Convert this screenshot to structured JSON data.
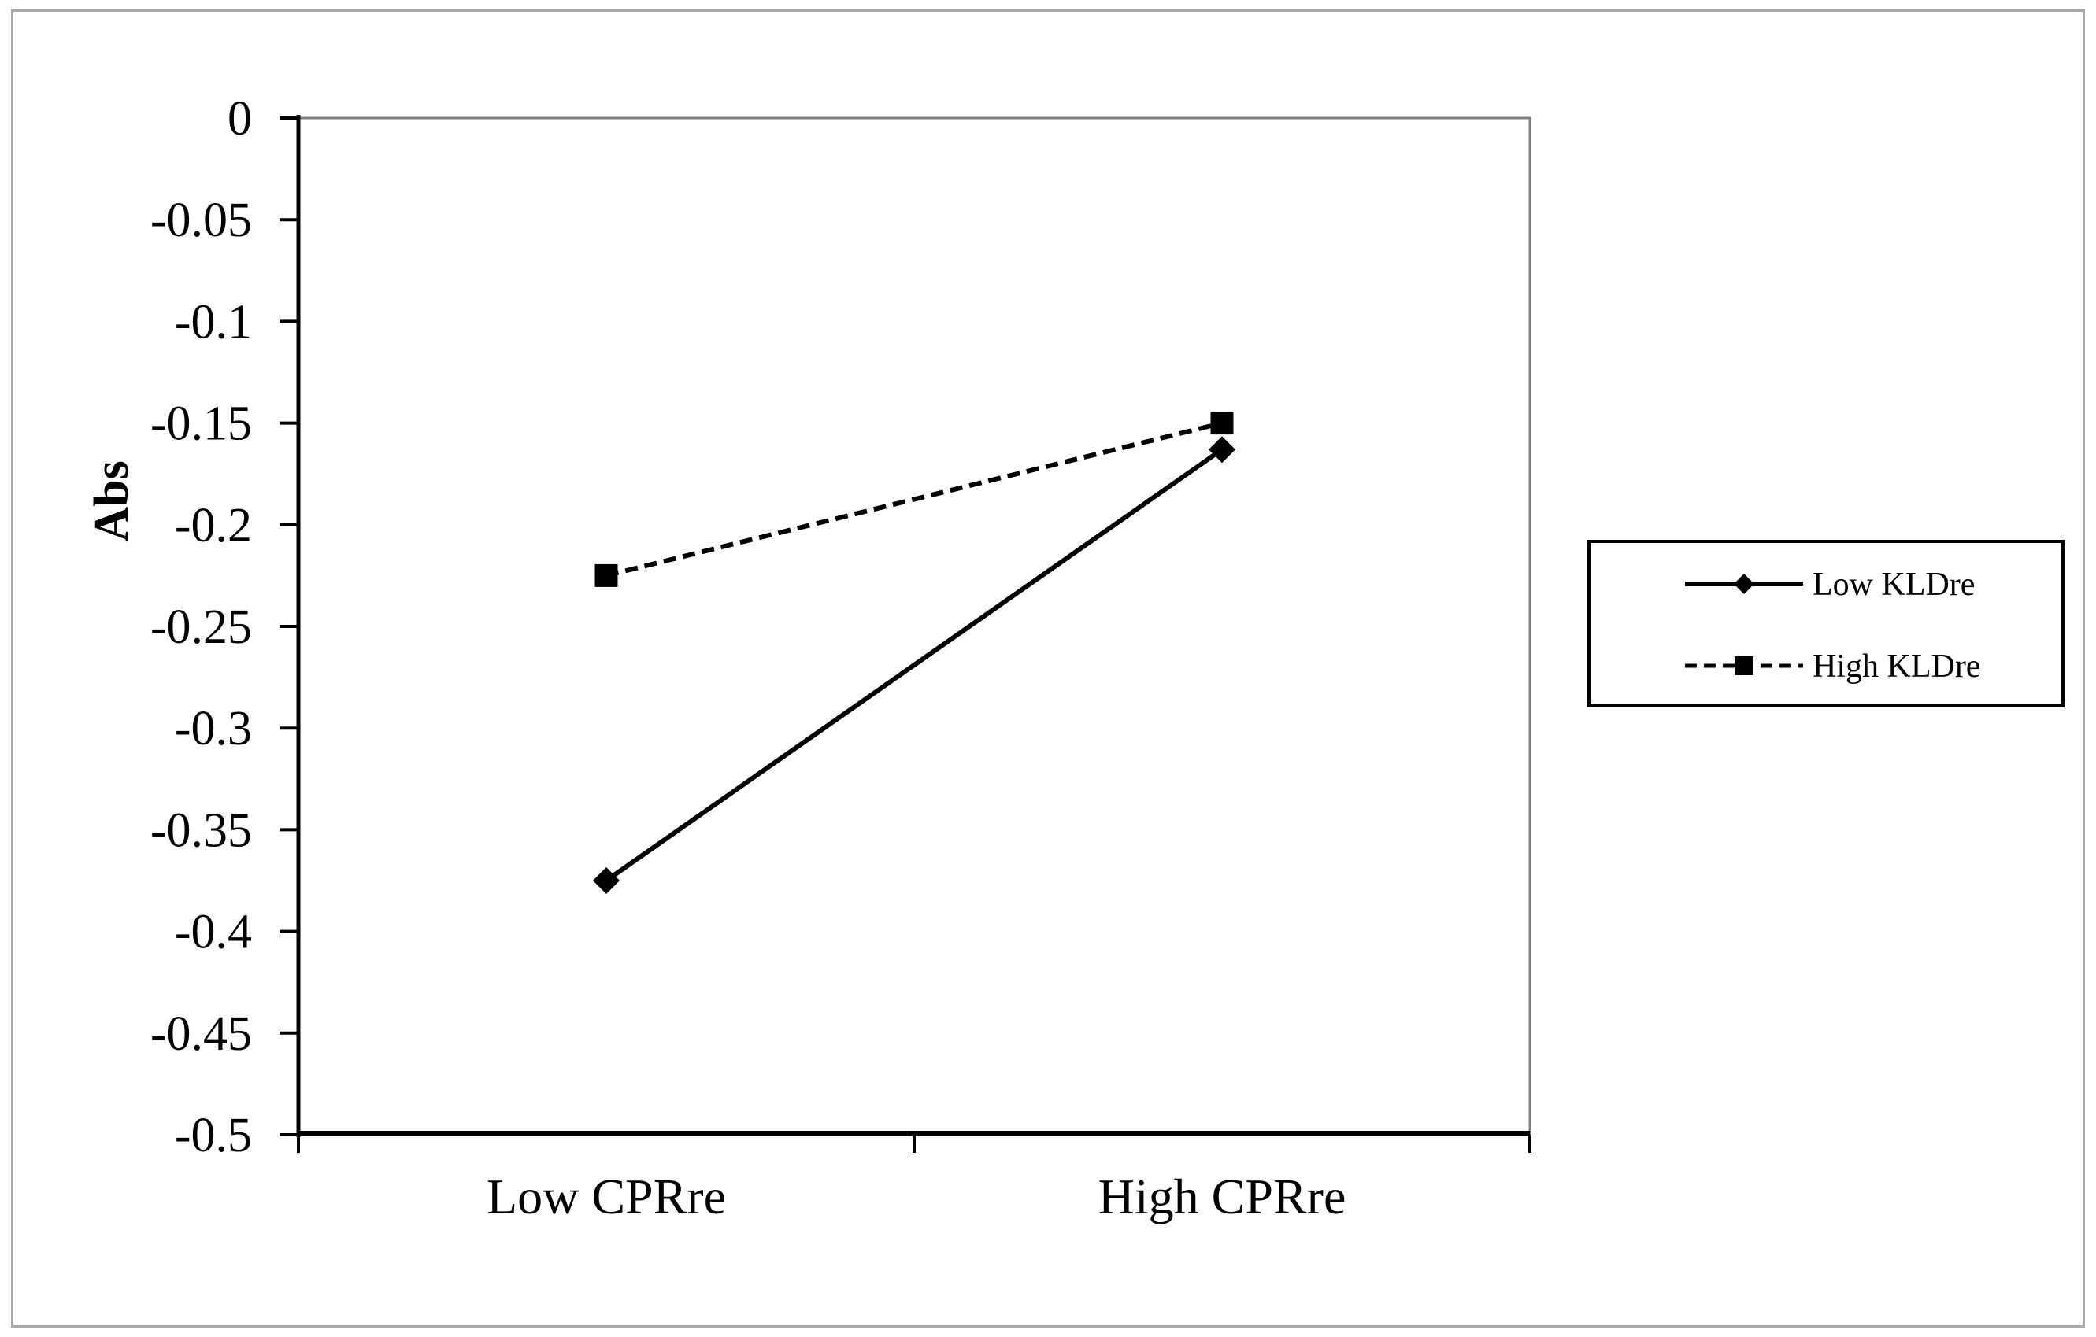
{
  "chart_data": {
    "type": "line",
    "title": "",
    "xlabel": "",
    "ylabel": "Abs",
    "categories": [
      "Low CPRre",
      "High CPRre"
    ],
    "series": [
      {
        "name": "Low KLDre",
        "values": [
          -0.375,
          -0.163
        ],
        "line_style": "solid",
        "marker": "diamond",
        "color": "#000000"
      },
      {
        "name": "High KLDre",
        "values": [
          -0.225,
          -0.15
        ],
        "line_style": "dashed",
        "marker": "square",
        "color": "#000000"
      }
    ],
    "ylim": [
      -0.5,
      0
    ],
    "y_ticks": [
      0,
      -0.05,
      -0.1,
      -0.15,
      -0.2,
      -0.25,
      -0.3,
      -0.35,
      -0.4,
      -0.45,
      -0.5
    ],
    "y_tick_labels": [
      "0",
      "-0.05",
      "-0.1",
      "-0.15",
      "-0.2",
      "-0.25",
      "-0.3",
      "-0.35",
      "-0.4",
      "-0.45",
      "-0.5"
    ],
    "grid": "off",
    "legend_position": "right-middle",
    "colors": {
      "line": "#000000",
      "text": "#000000",
      "plot_border": "#808080",
      "outer_border": "#a9a9a9",
      "background": "#ffffff"
    }
  }
}
